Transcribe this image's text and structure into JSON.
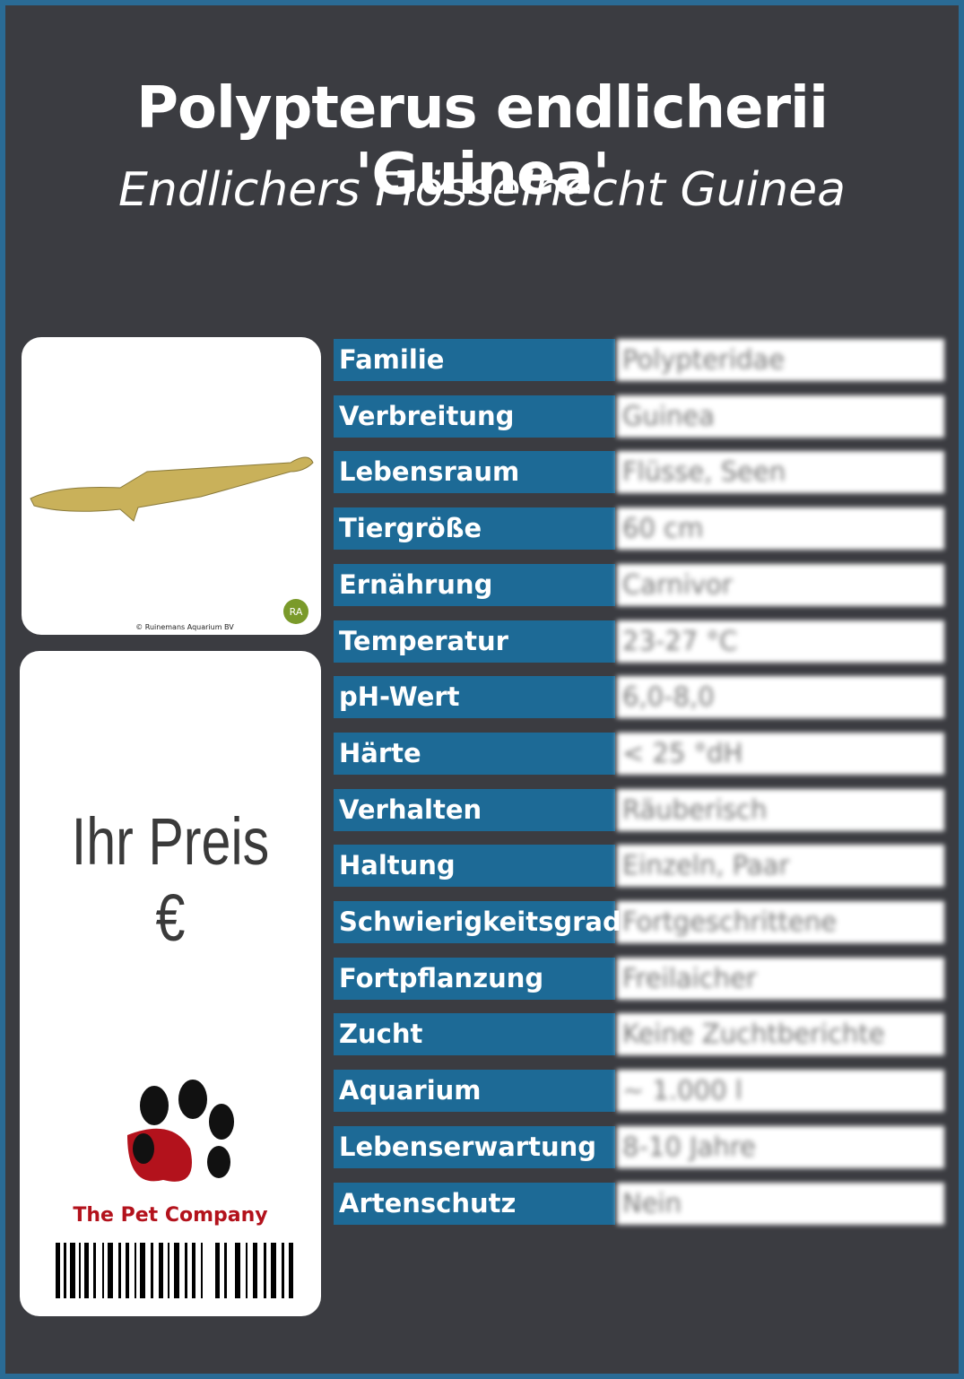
{
  "header": {
    "title": "Polypterus endlicherii 'Guinea'",
    "subtitle": "Endlichers Flösselhecht Guinea"
  },
  "photo": {
    "credit": "© Ruinemans Aquarium BV",
    "logo": "RA"
  },
  "price": {
    "label": "Ihr Preis €"
  },
  "brand": {
    "name": "The Pet Company"
  },
  "table": {
    "rows": [
      [
        "Familie",
        "Polypteridae"
      ],
      [
        "Verbreitung",
        "Guinea"
      ],
      [
        "Lebensraum",
        "Flüsse, Seen"
      ],
      [
        "Tiergröße",
        "60 cm"
      ],
      [
        "Ernährung",
        "Carnivor"
      ],
      [
        "Temperatur",
        "23-27 °C"
      ],
      [
        "pH-Wert",
        "6,0-8,0"
      ],
      [
        "Härte",
        "< 25 °dH"
      ],
      [
        "Verhalten",
        "Räuberisch"
      ],
      [
        "Haltung",
        "Einzeln, Paar"
      ],
      [
        "Schwierigkeitsgrad",
        "Fortgeschrittene"
      ],
      [
        "Fortpflanzung",
        "Freilaicher"
      ],
      [
        "Zucht",
        "Keine Zuchtberichte"
      ],
      [
        "Aquarium",
        "~ 1.000 l"
      ],
      [
        "Lebenserwartung",
        "8-10 Jahre"
      ],
      [
        "Artenschutz",
        "Nein"
      ]
    ]
  }
}
